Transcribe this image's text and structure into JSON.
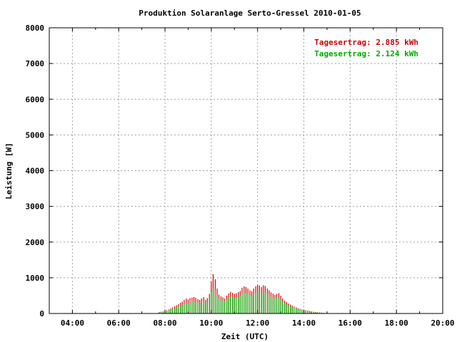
{
  "chart_data": {
    "type": "bar",
    "title": "Produktion Solaranlage Serto-Gressel 2010-01-05",
    "xlabel": "Zeit (UTC)",
    "ylabel": "Leistung [W]",
    "xlim": [
      3.0,
      20.0
    ],
    "ylim": [
      0,
      8000
    ],
    "xticks": [
      {
        "v": 4,
        "label": "04:00"
      },
      {
        "v": 6,
        "label": "06:00"
      },
      {
        "v": 8,
        "label": "08:00"
      },
      {
        "v": 10,
        "label": "10:00"
      },
      {
        "v": 12,
        "label": "12:00"
      },
      {
        "v": 14,
        "label": "14:00"
      },
      {
        "v": 16,
        "label": "16:00"
      },
      {
        "v": 18,
        "label": "18:00"
      },
      {
        "v": 20,
        "label": "20:00"
      }
    ],
    "yticks": [
      {
        "v": 0,
        "label": "0"
      },
      {
        "v": 1000,
        "label": "1000"
      },
      {
        "v": 2000,
        "label": "2000"
      },
      {
        "v": 3000,
        "label": "3000"
      },
      {
        "v": 4000,
        "label": "4000"
      },
      {
        "v": 5000,
        "label": "5000"
      },
      {
        "v": 6000,
        "label": "6000"
      },
      {
        "v": 7000,
        "label": "7000"
      },
      {
        "v": 8000,
        "label": "8000"
      }
    ],
    "grid": true,
    "legend": [
      {
        "label": "Tagesertrag: 2.885 kWh",
        "color": "#cc0000"
      },
      {
        "label": "Tagesertrag: 2.124 kWh",
        "color": "#00aa00"
      }
    ],
    "legend_position": "top-right",
    "series": [
      {
        "name": "Tagesertrag: 2.885 kWh",
        "color": "#cc0000",
        "x": [
          7.75,
          7.83,
          7.92,
          8.0,
          8.08,
          8.17,
          8.25,
          8.33,
          8.42,
          8.5,
          8.58,
          8.67,
          8.75,
          8.83,
          8.92,
          9.0,
          9.08,
          9.17,
          9.25,
          9.33,
          9.42,
          9.5,
          9.58,
          9.67,
          9.75,
          9.83,
          9.92,
          10.0,
          10.08,
          10.17,
          10.25,
          10.33,
          10.42,
          10.5,
          10.58,
          10.67,
          10.75,
          10.83,
          10.92,
          11.0,
          11.08,
          11.17,
          11.25,
          11.33,
          11.42,
          11.5,
          11.58,
          11.67,
          11.75,
          11.83,
          11.92,
          12.0,
          12.08,
          12.17,
          12.25,
          12.33,
          12.42,
          12.5,
          12.58,
          12.67,
          12.75,
          12.83,
          12.92,
          13.0,
          13.08,
          13.17,
          13.25,
          13.33,
          13.42,
          13.5,
          13.58,
          13.67,
          13.75,
          13.83,
          13.92,
          14.0,
          14.08,
          14.17,
          14.25,
          14.33,
          14.42,
          14.5,
          14.58,
          14.67,
          14.75,
          14.83,
          14.92,
          15.0
        ],
        "values": [
          40,
          50,
          60,
          70,
          90,
          110,
          140,
          170,
          200,
          230,
          260,
          300,
          330,
          380,
          420,
          390,
          430,
          450,
          460,
          440,
          400,
          380,
          420,
          460,
          380,
          430,
          550,
          900,
          1100,
          960,
          700,
          530,
          480,
          450,
          420,
          500,
          560,
          610,
          580,
          550,
          570,
          600,
          630,
          720,
          760,
          740,
          700,
          650,
          620,
          700,
          760,
          800,
          780,
          740,
          790,
          770,
          700,
          650,
          590,
          560,
          520,
          550,
          570,
          500,
          420,
          360,
          320,
          280,
          250,
          220,
          190,
          170,
          150,
          130,
          110,
          100,
          90,
          80,
          70,
          60,
          50,
          40,
          35,
          30,
          25,
          20,
          15,
          10
        ]
      },
      {
        "name": "Tagesertrag: 2.124 kWh",
        "color": "#00aa00",
        "x": [
          7.75,
          7.83,
          7.92,
          8.0,
          8.08,
          8.17,
          8.25,
          8.33,
          8.42,
          8.5,
          8.58,
          8.67,
          8.75,
          8.83,
          8.92,
          9.0,
          9.08,
          9.17,
          9.25,
          9.33,
          9.42,
          9.5,
          9.58,
          9.67,
          9.75,
          9.83,
          9.92,
          10.0,
          10.08,
          10.17,
          10.25,
          10.33,
          10.42,
          10.5,
          10.58,
          10.67,
          10.75,
          10.83,
          10.92,
          11.0,
          11.08,
          11.17,
          11.25,
          11.33,
          11.42,
          11.5,
          11.58,
          11.67,
          11.75,
          11.83,
          11.92,
          12.0,
          12.08,
          12.17,
          12.25,
          12.33,
          12.42,
          12.5,
          12.58,
          12.67,
          12.75,
          12.83,
          12.92,
          13.0,
          13.08,
          13.17,
          13.25,
          13.33,
          13.42,
          13.5,
          13.58,
          13.67,
          13.75,
          13.83,
          13.92,
          14.0,
          14.08,
          14.17,
          14.25,
          14.33,
          14.42,
          14.5,
          14.58,
          14.67,
          14.75,
          14.83,
          14.92,
          15.0
        ],
        "values": [
          30,
          40,
          50,
          55,
          70,
          85,
          110,
          130,
          150,
          170,
          190,
          220,
          250,
          280,
          300,
          290,
          310,
          330,
          340,
          320,
          300,
          290,
          310,
          340,
          300,
          330,
          400,
          600,
          700,
          640,
          500,
          410,
          380,
          360,
          340,
          400,
          440,
          480,
          460,
          440,
          450,
          470,
          490,
          550,
          580,
          570,
          540,
          500,
          480,
          540,
          580,
          610,
          600,
          570,
          600,
          590,
          540,
          500,
          460,
          440,
          410,
          430,
          440,
          390,
          330,
          290,
          250,
          220,
          200,
          180,
          160,
          140,
          120,
          110,
          95,
          85,
          75,
          65,
          55,
          48,
          40,
          32,
          28,
          24,
          20,
          15,
          12,
          8
        ]
      }
    ]
  }
}
